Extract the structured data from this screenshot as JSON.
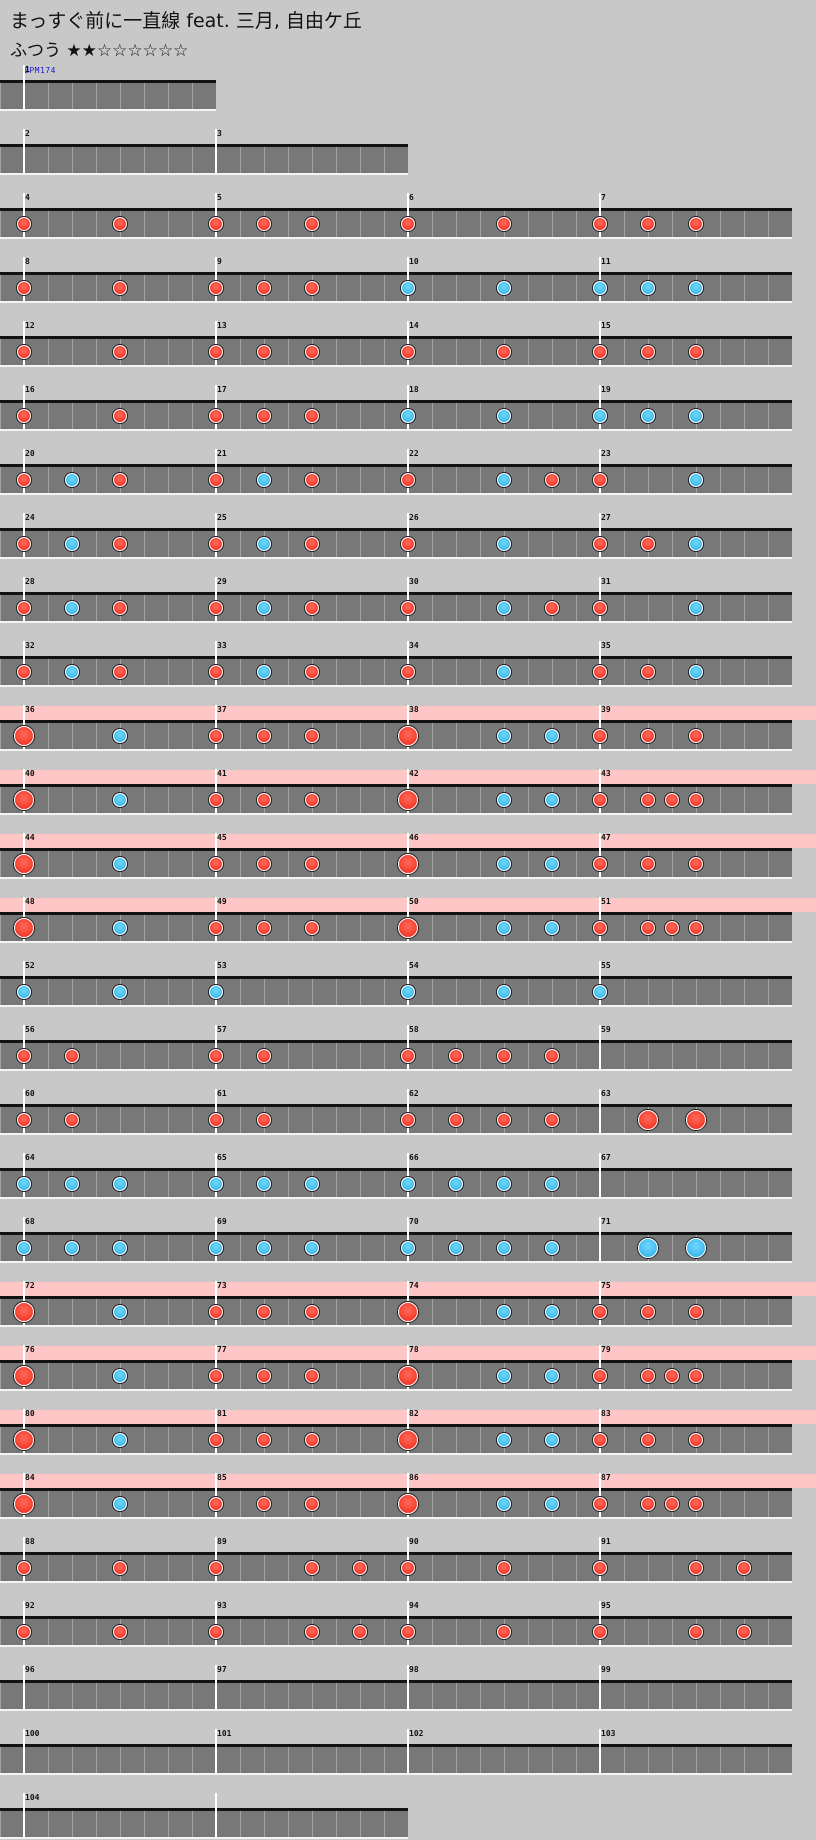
{
  "title": "まっすぐ前に一直線 feat. 三月, 自由ケ丘",
  "difficulty": "ふつう ★★☆☆☆☆☆☆",
  "bpm_label": "BPM174",
  "colors": {
    "background": "#c8c8c8",
    "lane": "#787878",
    "gogo_highlight": "#ffc6c6",
    "don": "#f2392b",
    "ka": "#3ab8ec",
    "bpm_text": "#1a1ad8"
  },
  "rows": [
    {
      "measures": 1,
      "gogo": false,
      "notes": ""
    },
    {
      "measures": 2,
      "gogo": false,
      "notes": ""
    },
    {
      "measures": 4,
      "gogo": false,
      "notes": "d...d...d.d.d...d...d...d.d.d..."
    },
    {
      "measures": 4,
      "gogo": false,
      "notes": "d...d...d.d.d...k...k...k.k.k..."
    },
    {
      "measures": 4,
      "gogo": false,
      "notes": "d...d...d.d.d...d...d...d.d.d..."
    },
    {
      "measures": 4,
      "gogo": false,
      "notes": "d...d...d.d.d...k...k...k.k.k..."
    },
    {
      "measures": 4,
      "gogo": false,
      "notes": "d.k.d...d.k.d...d...k.d.d...k..."
    },
    {
      "measures": 4,
      "gogo": false,
      "notes": "d.k.d...d.k.d...d...k...d.d.k..."
    },
    {
      "measures": 4,
      "gogo": false,
      "notes": "d.k.d...d.k.d...d...k.d.d...k..."
    },
    {
      "measures": 4,
      "gogo": false,
      "notes": "d.k.d...d.k.d...d...k...d.d.k..."
    },
    {
      "measures": 4,
      "gogo": true,
      "notes": "D...k...d.d.d...D...k.k.d.d.d..."
    },
    {
      "measures": 4,
      "gogo": true,
      "notes": "D...k...d.d.d...D...k.k.d.ddd..."
    },
    {
      "measures": 4,
      "gogo": true,
      "notes": "D...k...d.d.d...D...k.k.d.d.d..."
    },
    {
      "measures": 4,
      "gogo": true,
      "notes": "D...k...d.d.d...D...k.k.d.ddd..."
    },
    {
      "measures": 4,
      "gogo": false,
      "notes": "k...k...k.......k...k...k......."
    },
    {
      "measures": 4,
      "gogo": false,
      "notes": "d.d.....d.d.....d.d.d.d........."
    },
    {
      "measures": 4,
      "gogo": false,
      "notes": "d.d.....d.d.....d.d.d.d...D.D..."
    },
    {
      "measures": 4,
      "gogo": false,
      "notes": "k.k.k...k.k.k...k.k.k.k........."
    },
    {
      "measures": 4,
      "gogo": false,
      "notes": "k.k.k...k.k.k...k.k.k.k...K.K..."
    },
    {
      "measures": 4,
      "gogo": true,
      "notes": "D...k...d.d.d...D...k.k.d.d.d..."
    },
    {
      "measures": 4,
      "gogo": true,
      "notes": "D...k...d.d.d...D...k.k.d.ddd..."
    },
    {
      "measures": 4,
      "gogo": true,
      "notes": "D...k...d.d.d...D...k.k.d.d.d..."
    },
    {
      "measures": 4,
      "gogo": true,
      "notes": "D...k...d.d.d...D...k.k.d.ddd..."
    },
    {
      "measures": 4,
      "gogo": false,
      "notes": "d...d...d...d.d.d...d...d...d.d."
    },
    {
      "measures": 4,
      "gogo": false,
      "notes": "d...d...d...d.d.d...d...d...d.d."
    },
    {
      "measures": 4,
      "gogo": false,
      "notes": ""
    },
    {
      "measures": 4,
      "gogo": false,
      "notes": ""
    },
    {
      "measures": 2,
      "gogo": false,
      "notes": ""
    }
  ],
  "measure_numbers": [
    "1",
    "2",
    "3",
    "4",
    "5",
    "6",
    "7",
    "8",
    "9",
    "10",
    "11",
    "12",
    "13",
    "14",
    "15",
    "16",
    "17",
    "18",
    "19",
    "20",
    "21",
    "22",
    "23",
    "24",
    "25",
    "26",
    "27",
    "28",
    "29",
    "30",
    "31",
    "32",
    "33",
    "34",
    "35",
    "36",
    "37",
    "38",
    "39",
    "40",
    "41",
    "42",
    "43",
    "44",
    "45",
    "46",
    "47",
    "48",
    "49",
    "50",
    "51",
    "52",
    "53",
    "54",
    "55",
    "56",
    "57",
    "58",
    "59",
    "60",
    "61",
    "62",
    "63",
    "64",
    "65",
    "66",
    "67",
    "68",
    "69",
    "70",
    "71",
    "72",
    "73",
    "74",
    "75",
    "76",
    "77",
    "78",
    "79",
    "80",
    "81",
    "82",
    "83",
    "84",
    "85",
    "86",
    "87",
    "88",
    "89",
    "90",
    "91",
    "92",
    "93",
    "94",
    "95",
    "96",
    "97",
    "98",
    "99",
    "100",
    "101",
    "102",
    "103",
    "104"
  ]
}
